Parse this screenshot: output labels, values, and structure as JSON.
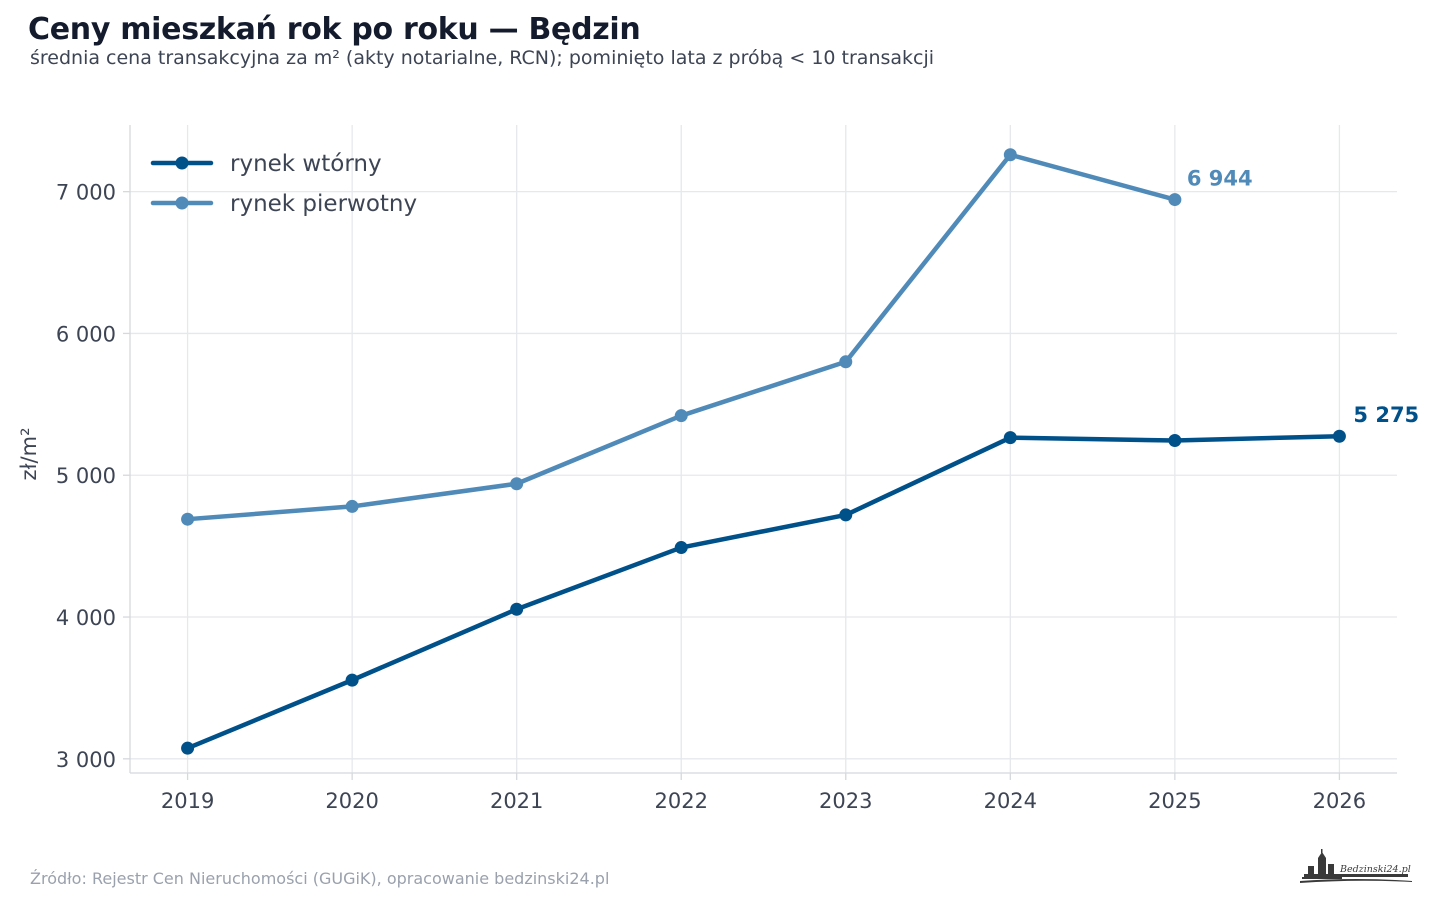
{
  "header": {
    "title": "Ceny mieszkań rok po roku — Będzin",
    "subtitle": "średnia cena transakcyjna za m² (akty notarialne, RCN); pominięto lata z próbą < 10 transakcji"
  },
  "footer": {
    "source": "Źródło: Rejestr Cen Nieruchomości (GUGiK), opracowanie bedzinski24.pl",
    "logo_text": "Bedzinski24.pl"
  },
  "chart_data": {
    "type": "line",
    "x": [
      2019,
      2020,
      2021,
      2022,
      2023,
      2024,
      2025,
      2026
    ],
    "x_tick_labels": [
      "2019",
      "2020",
      "2021",
      "2022",
      "2023",
      "2024",
      "2025",
      "2026"
    ],
    "xlim": [
      2018.65,
      2026.35
    ],
    "ylim": [
      2900,
      7470
    ],
    "y_ticks": [
      3000,
      4000,
      5000,
      6000,
      7000
    ],
    "y_tick_labels": [
      "3 000",
      "4 000",
      "5 000",
      "6 000",
      "7 000"
    ],
    "ylabel": "zł/m²",
    "xlabel": "",
    "grid": true,
    "legend_position": "top-left",
    "series": [
      {
        "name": "rynek wtórny",
        "color": "#00508a",
        "x": [
          2019,
          2020,
          2021,
          2022,
          2023,
          2024,
          2025,
          2026
        ],
        "values": [
          3075,
          3555,
          4055,
          4490,
          4720,
          5265,
          5245,
          5275
        ],
        "end_label": "5 275"
      },
      {
        "name": "rynek pierwotny",
        "color": "#4f8ab9",
        "x": [
          2019,
          2020,
          2021,
          2022,
          2023,
          2024,
          2025
        ],
        "values": [
          4690,
          4780,
          4940,
          5420,
          5800,
          7260,
          6944
        ],
        "end_label": "6 944"
      }
    ]
  }
}
